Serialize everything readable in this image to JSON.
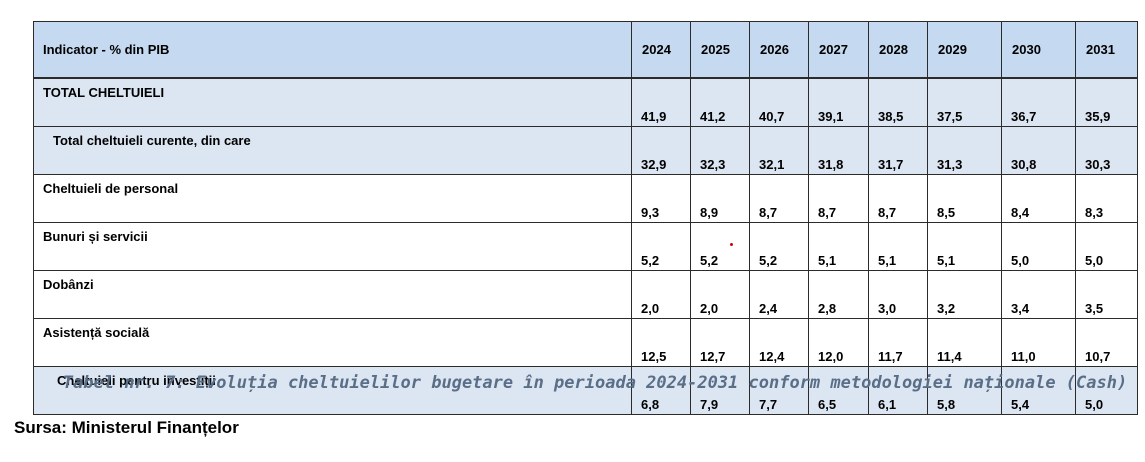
{
  "table": {
    "header": {
      "indicator": "Indicator - % din PIB",
      "years": [
        "2024",
        "2025",
        "2026",
        "2027",
        "2028",
        "2029",
        "2030",
        "2031"
      ]
    },
    "rows": [
      {
        "label": "TOTAL CHELTUIELI",
        "values": [
          "41,9",
          "41,2",
          "40,7",
          "39,1",
          "38,5",
          "37,5",
          "36,7",
          "35,9"
        ],
        "shade": "blue",
        "indent": 0
      },
      {
        "label": "Total cheltuieli curente, din care",
        "values": [
          "32,9",
          "32,3",
          "32,1",
          "31,8",
          "31,7",
          "31,3",
          "30,8",
          "30,3"
        ],
        "shade": "blue",
        "indent": 1
      },
      {
        "label": "Cheltuieli de personal",
        "values": [
          "9,3",
          "8,9",
          "8,7",
          "8,7",
          "8,7",
          "8,5",
          "8,4",
          "8,3"
        ],
        "shade": "white",
        "indent": 0
      },
      {
        "label": "Bunuri și servicii",
        "values": [
          "5,2",
          "5,2",
          "5,2",
          "5,1",
          "5,1",
          "5,1",
          "5,0",
          "5,0"
        ],
        "shade": "white",
        "indent": 0
      },
      {
        "label": "Dobânzi",
        "values": [
          "2,0",
          "2,0",
          "2,4",
          "2,8",
          "3,0",
          "3,2",
          "3,4",
          "3,5"
        ],
        "shade": "white",
        "indent": 0
      },
      {
        "label": "Asistență socială",
        "values": [
          "12,5",
          "12,7",
          "12,4",
          "12,0",
          "11,7",
          "11,4",
          "11,0",
          "10,7"
        ],
        "shade": "white",
        "indent": 0
      },
      {
        "label": "Cheltuieli pentru investiții",
        "values": [
          "6,8",
          "7,9",
          "7,7",
          "6,5",
          "6,1",
          "5,8",
          "5,4",
          "5,0"
        ],
        "shade": "blue",
        "indent": 2
      }
    ]
  },
  "caption": "Tabel nr. 7: Evoluția cheltuielilor bugetare în perioada 2024-2031 conform metodologiei naționale (Cash)",
  "source": "Sursa: Ministerul Finanțelor",
  "colors": {
    "header_bg": "#c5d9f1",
    "row_blue_bg": "#dce6f2",
    "caption_text": "#5a6e88",
    "annotation_dot": "#d40000"
  }
}
